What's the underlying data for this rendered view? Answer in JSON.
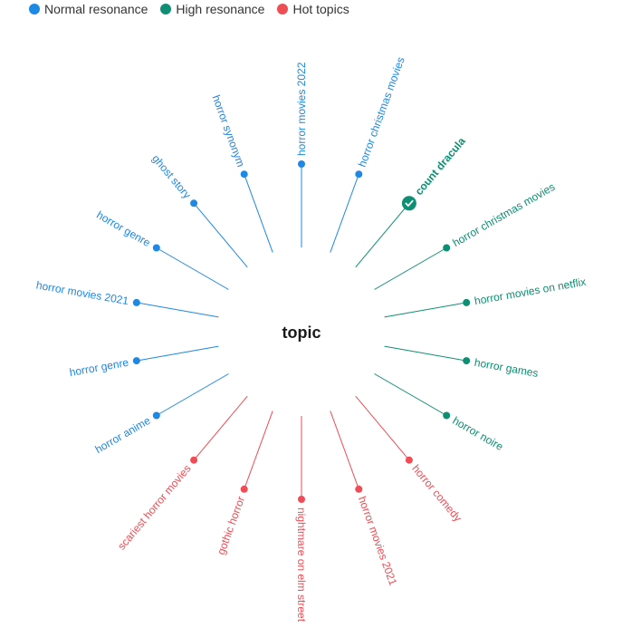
{
  "legend": [
    {
      "label": "Normal resonance",
      "color": "#1e88e5"
    },
    {
      "label": "High resonance",
      "color": "#0e8f73"
    },
    {
      "label": "Hot topics",
      "color": "#ee4d55"
    }
  ],
  "colors": {
    "normal": "#1e88e5",
    "high": "#0e8f73",
    "hot": "#ee4d55"
  },
  "center": {
    "label": "topic"
  },
  "keywords": [
    {
      "label": "horror movies 2022",
      "group": "normal"
    },
    {
      "label": "horror christmas movies",
      "group": "normal"
    },
    {
      "label": "count dracula",
      "group": "high",
      "featured": true
    },
    {
      "label": "horror christmas movies",
      "group": "high"
    },
    {
      "label": "horror movies on netflix",
      "group": "high"
    },
    {
      "label": "horror games",
      "group": "high"
    },
    {
      "label": "horror noire",
      "group": "high"
    },
    {
      "label": "horror comedy",
      "group": "hot"
    },
    {
      "label": "horror movies 2021",
      "group": "hot"
    },
    {
      "label": "nightmare on elm street",
      "group": "hot"
    },
    {
      "label": "gothic horror",
      "group": "hot"
    },
    {
      "label": "scariest horror movies",
      "group": "hot"
    },
    {
      "label": "horror anime",
      "group": "normal"
    },
    {
      "label": "horror genre",
      "group": "normal"
    },
    {
      "label": "horror movies 2021",
      "group": "normal"
    },
    {
      "label": "horror genre",
      "group": "normal"
    },
    {
      "label": "ghost story",
      "group": "normal"
    },
    {
      "label": "horror synonym",
      "group": "normal"
    }
  ]
}
